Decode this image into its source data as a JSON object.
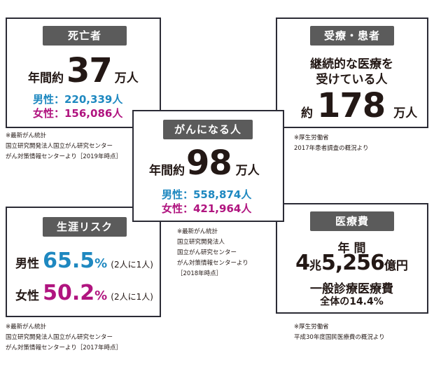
{
  "death": {
    "tag": "死亡者",
    "prefix": "年間約",
    "number": "37",
    "unit": "万人",
    "male": "男性：220,339人",
    "female": "女性：156,086人",
    "notes": [
      "※最新がん統計",
      "国立研究開発法人国立がん研究センター",
      "がん対策情報センターより［2019年時点］"
    ]
  },
  "patients": {
    "tag": "受療・患者",
    "line1": "継続的な医療を",
    "line2": "受けている人",
    "prefix": "約",
    "number": "178",
    "unit": "万人",
    "notes": [
      "※厚生労働省",
      "2017年患者調査の概況より"
    ]
  },
  "cancer": {
    "tag": "がんになる人",
    "prefix": "年間約",
    "number": "98",
    "unit": "万人",
    "male": "男性：558,874人",
    "female": "女性：421,964人",
    "notes": [
      "※最新がん統計",
      "国立研究開発法人",
      "国立がん研究センター",
      "がん対策情報センターより",
      "［2018年時点］"
    ]
  },
  "risk": {
    "tag": "生涯リスク",
    "male_label": "男性",
    "male_value": "65.5",
    "male_unit": "%",
    "male_note": "(2人に1人)",
    "female_label": "女性",
    "female_value": "50.2",
    "female_unit": "%",
    "female_note": "(2人に1人)",
    "notes": [
      "※最新がん統計",
      "国立研究開発法人国立がん研究センター",
      "がん対策情報センターより［2017年時点］"
    ]
  },
  "cost": {
    "tag": "医療費",
    "line1": "年 間",
    "n1": "4",
    "u1": "兆",
    "n2": "5,256",
    "u2": "億円",
    "line3": "一般診療医療費",
    "line4": "全体の14.4%",
    "notes": [
      "※厚生労働省",
      "平成30年度国民医療費の概況より"
    ]
  },
  "colors": {
    "border": "#2b2b35",
    "tag_bg": "#5b5b5b",
    "male": "#1e88c0",
    "female": "#b0147f"
  }
}
